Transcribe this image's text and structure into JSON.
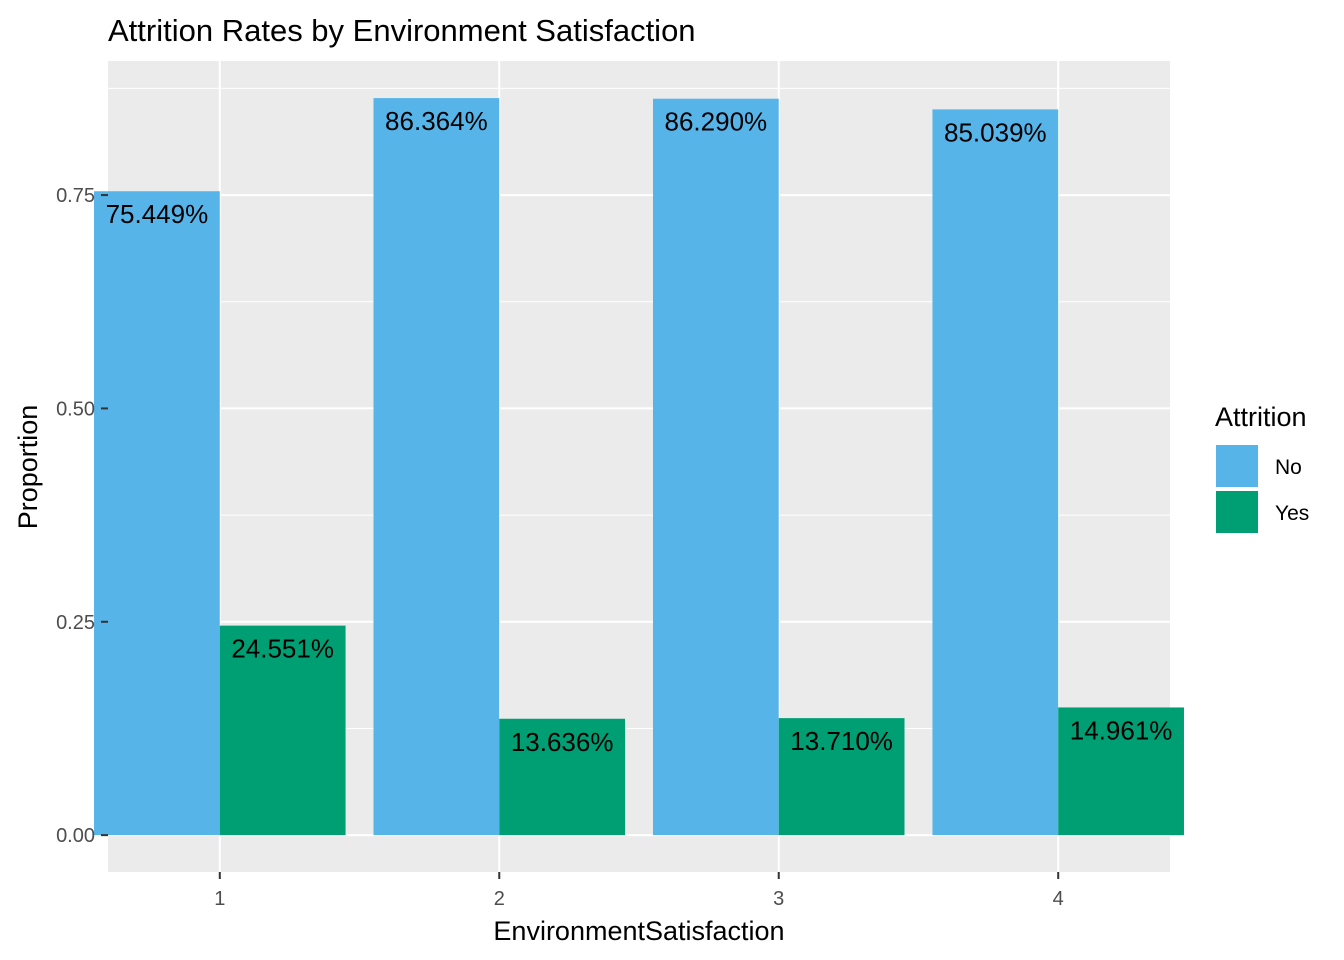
{
  "chart_data": {
    "type": "bar",
    "title": "Attrition Rates by Environment Satisfaction",
    "xlabel": "EnvironmentSatisfaction",
    "ylabel": "Proportion",
    "categories": [
      "1",
      "2",
      "3",
      "4"
    ],
    "ylim": [
      -0.0432,
      0.9071
    ],
    "yticks": [
      0.0,
      0.25,
      0.5,
      0.75
    ],
    "ytick_labels": [
      "0.00",
      "0.25",
      "0.50",
      "0.75"
    ],
    "grid": true,
    "legend": {
      "title": "Attrition",
      "position": "right"
    },
    "series": [
      {
        "name": "No",
        "color": "#56B4E9",
        "values": [
          0.75449,
          0.86364,
          0.8629,
          0.85039
        ],
        "labels": [
          "75.449%",
          "86.364%",
          "86.290%",
          "85.039%"
        ]
      },
      {
        "name": "Yes",
        "color": "#009E73",
        "values": [
          0.24551,
          0.13636,
          0.1371,
          0.14961
        ],
        "labels": [
          "24.551%",
          "13.636%",
          "13.710%",
          "14.961%"
        ]
      }
    ],
    "panel_background": "#EBEBEB",
    "grid_color": "#FFFFFF"
  }
}
